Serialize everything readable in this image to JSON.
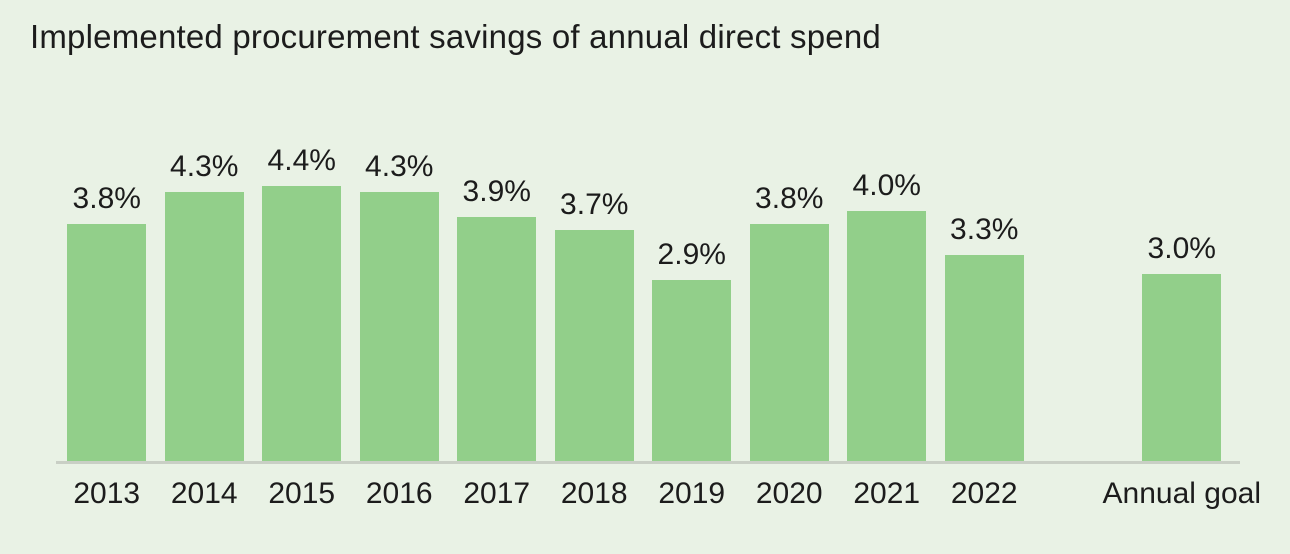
{
  "chart_data": {
    "type": "bar",
    "title": "Implemented procurement savings of annual direct spend",
    "categories": [
      "2013",
      "2014",
      "2015",
      "2016",
      "2017",
      "2018",
      "2019",
      "2020",
      "2021",
      "2022",
      "Annual goal"
    ],
    "values": [
      3.8,
      4.3,
      4.4,
      4.3,
      3.9,
      3.7,
      2.9,
      3.8,
      4.0,
      3.3,
      3.0
    ],
    "labels": [
      "3.8%",
      "4.3%",
      "4.4%",
      "4.3%",
      "3.9%",
      "3.7%",
      "2.9%",
      "3.8%",
      "4.0%",
      "3.3%",
      "3.0%"
    ],
    "xlabel": "",
    "ylabel": "",
    "ylim": [
      0,
      5
    ],
    "grid": false,
    "legend": "none",
    "goal_category": "Annual goal",
    "bar_color": "#92cf8a",
    "background": "#e9f2e5",
    "text_color": "#1c1c1c",
    "axis_line_color": "#c9cfc5"
  }
}
